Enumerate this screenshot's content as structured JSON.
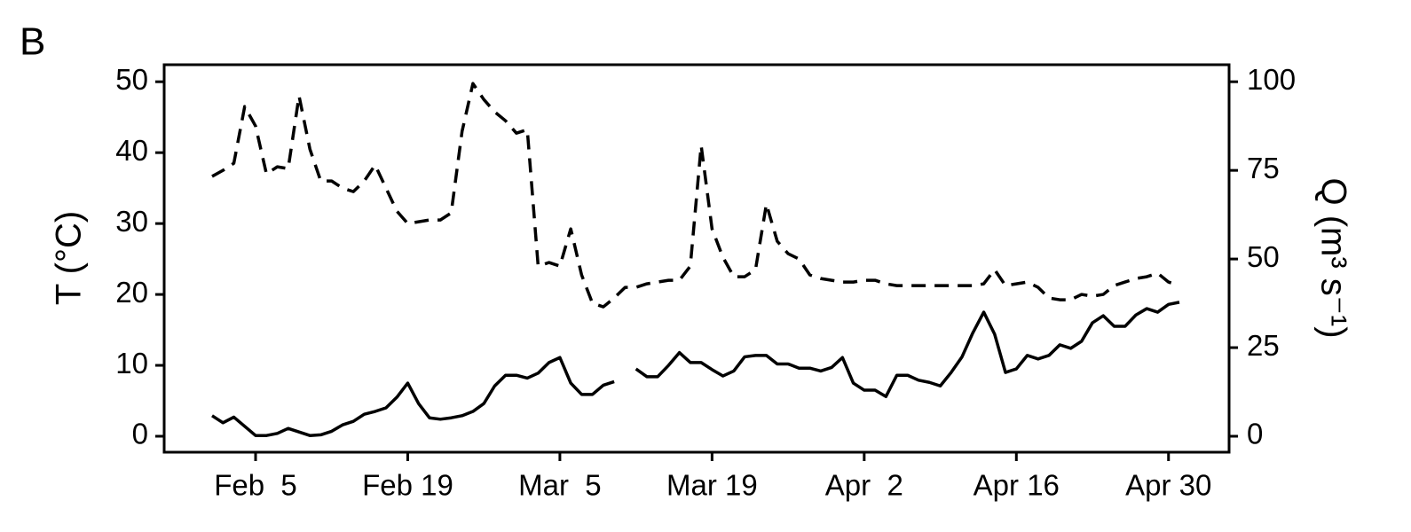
{
  "chart_data": {
    "type": "line",
    "panel_label": "B",
    "ylabel": "T (°C)",
    "y2label": "Q (m³ s⁻¹)",
    "x": [
      "Feb 1",
      "Feb 2",
      "Feb 3",
      "Feb 4",
      "Feb 5",
      "Feb 6",
      "Feb 7",
      "Feb 8",
      "Feb 9",
      "Feb 10",
      "Feb 11",
      "Feb 12",
      "Feb 13",
      "Feb 14",
      "Feb 15",
      "Feb 16",
      "Feb 17",
      "Feb 18",
      "Feb 19",
      "Feb 20",
      "Feb 21",
      "Feb 22",
      "Feb 23",
      "Feb 24",
      "Feb 25",
      "Feb 26",
      "Feb 27",
      "Feb 28",
      "Mar 1",
      "Mar 2",
      "Mar 3",
      "Mar 4",
      "Mar 5",
      "Mar 6",
      "Mar 7",
      "Mar 8",
      "Mar 9",
      "Mar 10",
      "Mar 11",
      "Mar 12",
      "Mar 13",
      "Mar 14",
      "Mar 15",
      "Mar 16",
      "Mar 17",
      "Mar 18",
      "Mar 19",
      "Mar 20",
      "Mar 21",
      "Mar 22",
      "Mar 23",
      "Mar 24",
      "Mar 25",
      "Mar 26",
      "Mar 27",
      "Mar 28",
      "Mar 29",
      "Mar 30",
      "Mar 31",
      "Apr 1",
      "Apr 2",
      "Apr 3",
      "Apr 4",
      "Apr 5",
      "Apr 6",
      "Apr 7",
      "Apr 8",
      "Apr 9",
      "Apr 10",
      "Apr 11",
      "Apr 12",
      "Apr 13",
      "Apr 14",
      "Apr 15",
      "Apr 16",
      "Apr 17",
      "Apr 18",
      "Apr 19",
      "Apr 20",
      "Apr 21",
      "Apr 22",
      "Apr 23",
      "Apr 24",
      "Apr 25",
      "Apr 26",
      "Apr 27",
      "Apr 28",
      "Apr 29",
      "Apr 30",
      "May 1"
    ],
    "series": [
      {
        "name": "T",
        "color": "#000000",
        "dash": "solid",
        "values": [
          2.9,
          1.9,
          2.7,
          1.4,
          0.1,
          0.1,
          0.4,
          1.1,
          0.6,
          0.1,
          0.2,
          0.7,
          1.6,
          2.1,
          3.1,
          3.5,
          4.0,
          5.5,
          7.5,
          4.6,
          2.6,
          2.4,
          2.6,
          2.9,
          3.5,
          4.6,
          7.1,
          8.6,
          8.6,
          8.2,
          8.9,
          10.4,
          11.1,
          7.5,
          5.9,
          5.9,
          7.2,
          7.7,
          null,
          9.5,
          8.4,
          8.4,
          10.0,
          11.8,
          10.4,
          10.4,
          9.4,
          8.5,
          9.2,
          11.2,
          11.4,
          11.4,
          10.2,
          10.2,
          9.6,
          9.6,
          9.2,
          9.7,
          11.1,
          7.5,
          6.5,
          6.5,
          5.6,
          8.6,
          8.6,
          7.9,
          7.6,
          7.1,
          9.0,
          11.2,
          14.6,
          17.5,
          14.4,
          9.0,
          9.5,
          11.4,
          10.9,
          11.4,
          12.9,
          12.4,
          13.4,
          16.0,
          17.0,
          15.5,
          15.5,
          17.1,
          18.0,
          17.5,
          18.6,
          18.9
        ]
      },
      {
        "name": "Q",
        "color": "#000000",
        "dash": "dashed",
        "axis": "y2",
        "values": [
          73.3,
          75,
          77,
          93,
          87.5,
          74,
          76,
          75.5,
          96,
          81,
          72,
          72,
          70,
          69,
          72,
          76.5,
          70,
          63.5,
          60,
          60.5,
          61,
          61,
          63,
          86,
          99.5,
          95,
          91.5,
          89,
          85.5,
          86.5,
          48,
          49,
          48,
          58.5,
          45.5,
          37.5,
          36.5,
          39,
          42,
          42,
          43,
          43.5,
          44,
          44,
          48,
          82,
          58.5,
          50.5,
          45,
          45,
          47,
          65.5,
          55,
          51.5,
          50,
          45.5,
          44.5,
          44,
          43.5,
          43.5,
          44,
          44,
          43,
          42.5,
          42.5,
          42.5,
          42.5,
          42.5,
          42.5,
          42.5,
          42.5,
          43,
          47,
          42.5,
          43,
          43.5,
          42,
          39,
          38.5,
          38.5,
          40,
          39.5,
          40,
          42.5,
          43.5,
          44.5,
          45,
          46,
          43.5,
          42.5
        ]
      }
    ],
    "xticks": [
      {
        "value": "Feb 5",
        "label": "Feb  5"
      },
      {
        "value": "Feb 19",
        "label": "Feb 19"
      },
      {
        "value": "Mar 5",
        "label": "Mar  5"
      },
      {
        "value": "Mar 19",
        "label": "Mar 19"
      },
      {
        "value": "Apr 2",
        "label": "Apr  2"
      },
      {
        "value": "Apr 16",
        "label": "Apr 16"
      },
      {
        "value": "Apr 30",
        "label": "Apr 30"
      }
    ],
    "ylim": [
      -2.25,
      52.4
    ],
    "yticks": [
      0,
      10,
      20,
      30,
      40,
      50
    ],
    "y2lim": [
      -4.5,
      104.8
    ],
    "y2ticks": [
      0,
      25,
      50,
      75,
      100
    ],
    "grid": false
  }
}
